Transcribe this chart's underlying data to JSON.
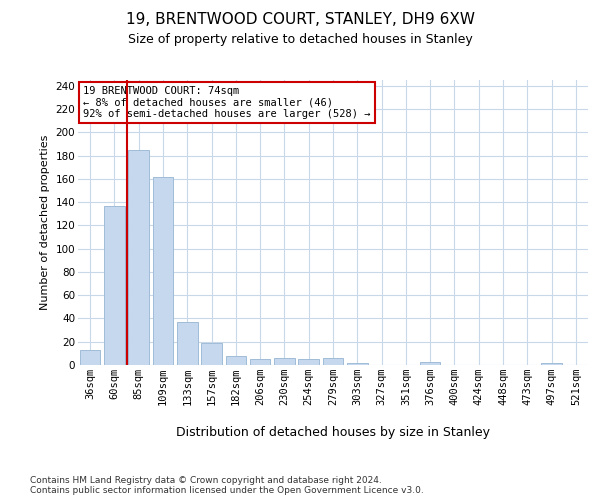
{
  "title1": "19, BRENTWOOD COURT, STANLEY, DH9 6XW",
  "title2": "Size of property relative to detached houses in Stanley",
  "xlabel": "Distribution of detached houses by size in Stanley",
  "ylabel": "Number of detached properties",
  "categories": [
    "36sqm",
    "60sqm",
    "85sqm",
    "109sqm",
    "133sqm",
    "157sqm",
    "182sqm",
    "206sqm",
    "230sqm",
    "254sqm",
    "279sqm",
    "303sqm",
    "327sqm",
    "351sqm",
    "376sqm",
    "400sqm",
    "424sqm",
    "448sqm",
    "473sqm",
    "497sqm",
    "521sqm"
  ],
  "values": [
    13,
    137,
    185,
    162,
    37,
    19,
    8,
    5,
    6,
    5,
    6,
    2,
    0,
    0,
    3,
    0,
    0,
    0,
    0,
    2,
    0
  ],
  "bar_color": "#c5d8ed",
  "bar_edge_color": "#a0bcd8",
  "vline_x": 1.5,
  "vline_color": "#cc0000",
  "annotation_line1": "19 BRENTWOOD COURT: 74sqm",
  "annotation_line2": "← 8% of detached houses are smaller (46)",
  "annotation_line3": "92% of semi-detached houses are larger (528) →",
  "annotation_box_color": "#cc0000",
  "ylim": [
    0,
    245
  ],
  "yticks": [
    0,
    20,
    40,
    60,
    80,
    100,
    120,
    140,
    160,
    180,
    200,
    220,
    240
  ],
  "footer1": "Contains HM Land Registry data © Crown copyright and database right 2024.",
  "footer2": "Contains public sector information licensed under the Open Government Licence v3.0.",
  "background_color": "#ffffff",
  "grid_color": "#c8d8e8",
  "title1_fontsize": 11,
  "title2_fontsize": 9,
  "ylabel_fontsize": 8,
  "xlabel_fontsize": 9,
  "tick_fontsize": 7.5,
  "footer_fontsize": 6.5,
  "ann_fontsize": 7.5
}
